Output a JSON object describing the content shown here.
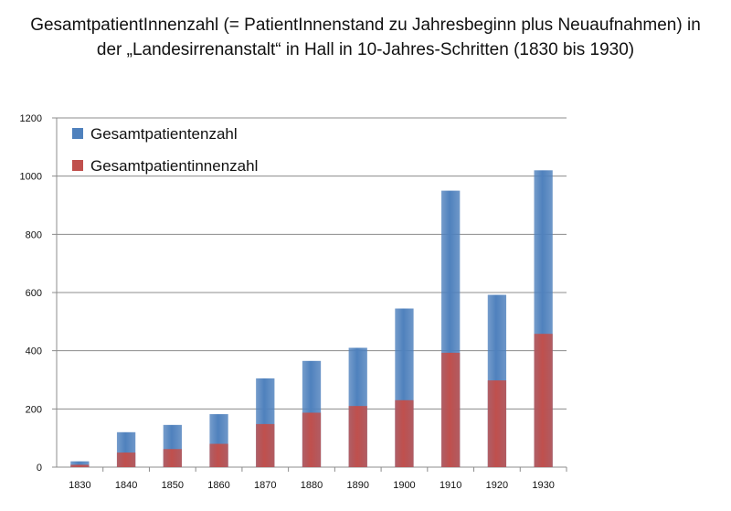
{
  "title": {
    "line1": "GesamtpatientInnenzahl (= PatientInnenstand zu Jahresbeginn plus Neuaufnahmen) in",
    "line2": "der „Landesirrenanstalt“ in Hall in 10-Jahres-Schritten (1830 bis 1930)"
  },
  "chart_data": {
    "type": "bar",
    "stacked": false,
    "overlapping": true,
    "categories": [
      "1830",
      "1840",
      "1850",
      "1860",
      "1870",
      "1880",
      "1890",
      "1900",
      "1910",
      "1920",
      "1930"
    ],
    "series": [
      {
        "name": "Gesamtpatientenzahl",
        "color": "#4f81bd",
        "values": [
          20,
          120,
          145,
          182,
          305,
          365,
          410,
          545,
          950,
          592,
          1020
        ]
      },
      {
        "name": "Gesamtpatientinnenzahl",
        "color": "#c0504d",
        "values": [
          8,
          50,
          62,
          80,
          148,
          187,
          210,
          230,
          393,
          298,
          458
        ]
      }
    ],
    "ylim": [
      0,
      1200
    ],
    "yticks": [
      0,
      200,
      400,
      600,
      800,
      1000,
      1200
    ],
    "grid": true,
    "legend_position": "top-left",
    "xlabel": "",
    "ylabel": ""
  }
}
